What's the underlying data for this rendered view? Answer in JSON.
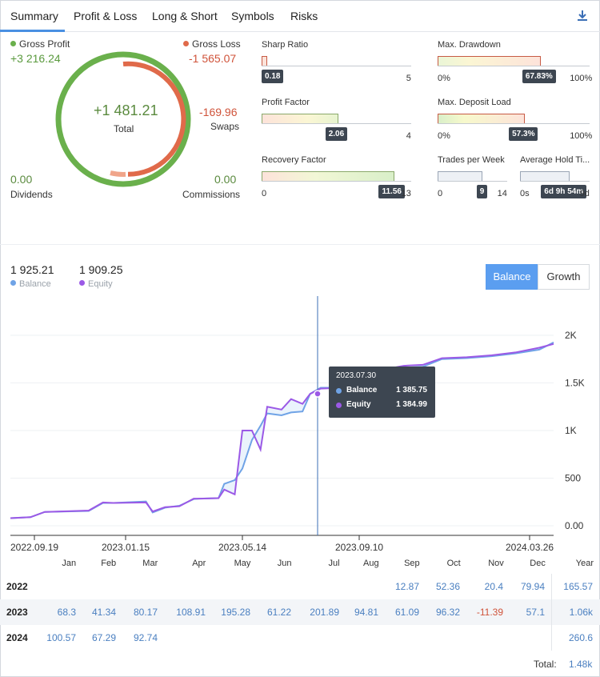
{
  "tabs": [
    {
      "label": "Summary"
    },
    {
      "label": "Profit & Loss"
    },
    {
      "label": "Long & Short"
    },
    {
      "label": "Symbols"
    },
    {
      "label": "Risks"
    }
  ],
  "summary": {
    "gross_profit_label": "Gross Profit",
    "gross_profit_value": "+3 216.24",
    "gross_loss_label": "Gross Loss",
    "gross_loss_value": "-1 565.07",
    "total_value": "+1 481.21",
    "total_label": "Total",
    "swaps_value": "-169.96",
    "swaps_label": "Swaps",
    "dividends_value": "0.00",
    "dividends_label": "Dividends",
    "commissions_value": "0.00",
    "commissions_label": "Commissions",
    "colors": {
      "profit": "#6ab04c",
      "loss": "#e06a4a",
      "swap": "#f0a58a"
    }
  },
  "metrics": {
    "sharp_ratio": {
      "title": "Sharp Ratio",
      "value": "0.18",
      "min": "",
      "max": "5",
      "fraction": 0.036
    },
    "profit_factor": {
      "title": "Profit Factor",
      "value": "2.06",
      "min": "",
      "max": "4",
      "fraction": 0.515
    },
    "recovery_factor": {
      "title": "Recovery Factor",
      "value": "11.56",
      "min": "0",
      "max": "13",
      "fraction": 0.889
    },
    "max_drawdown": {
      "title": "Max. Drawdown",
      "value": "67.83%",
      "min": "0%",
      "max": "100%",
      "fraction": 0.678
    },
    "max_deposit_load": {
      "title": "Max. Deposit Load",
      "value": "57.3%",
      "min": "0%",
      "max": "100%",
      "fraction": 0.573
    },
    "trades_per_week": {
      "title": "Trades per Week",
      "value": "9",
      "min": "0",
      "max": "14",
      "fraction": 0.643
    },
    "avg_hold_time": {
      "title": "Average Hold Ti...",
      "value": "6d 9h 54m",
      "min": "0s",
      "max": "9d",
      "fraction": 0.711
    }
  },
  "chart_legend": {
    "balance_value": "1 925.21",
    "balance_label": "Balance",
    "equity_value": "1 909.25",
    "equity_label": "Equity"
  },
  "toggle": {
    "balance": "Balance",
    "growth": "Growth"
  },
  "tooltip": {
    "date": "2023.07.30",
    "balance_label": "Balance",
    "balance_value": "1 385.75",
    "equity_label": "Equity",
    "equity_value": "1 384.99"
  },
  "chart_data": {
    "type": "line",
    "x_tick_labels": [
      "2022.09.19",
      "2023.01.15",
      "2023.05.14",
      "2023.09.10",
      "2024.03.26"
    ],
    "y_tick_labels": [
      "0.00",
      "500",
      "1K",
      "1.5K",
      "2K"
    ],
    "ylim": [
      0,
      2000
    ],
    "series": [
      {
        "name": "Balance",
        "color": "#6fa3e6",
        "x": [
          "2022.09.19",
          "2022.10.10",
          "2022.10.25",
          "2022.12.10",
          "2022.12.25",
          "2023.01.05",
          "2023.02.08",
          "2023.02.15",
          "2023.02.28",
          "2023.03.15",
          "2023.03.30",
          "2023.04.05",
          "2023.04.25",
          "2023.05.01",
          "2023.05.12",
          "2023.05.20",
          "2023.05.30",
          "2023.06.08",
          "2023.06.15",
          "2023.06.30",
          "2023.07.10",
          "2023.07.22",
          "2023.07.30",
          "2023.08.10",
          "2023.09.05",
          "2023.09.20",
          "2023.10.05",
          "2023.10.20",
          "2023.11.05",
          "2023.11.25",
          "2023.12.15",
          "2024.01.10",
          "2024.02.05",
          "2024.03.01",
          "2024.03.26",
          "2024.04.10"
        ],
        "values": [
          80,
          90,
          145,
          155,
          240,
          240,
          255,
          140,
          190,
          210,
          280,
          285,
          290,
          440,
          480,
          600,
          900,
          1050,
          1180,
          1160,
          1190,
          1200,
          1386,
          1450,
          1450,
          1560,
          1620,
          1650,
          1660,
          1670,
          1750,
          1760,
          1780,
          1810,
          1850,
          1925
        ]
      },
      {
        "name": "Equity",
        "color": "#9b59e6",
        "x": [
          "2022.09.19",
          "2022.10.10",
          "2022.10.25",
          "2022.12.10",
          "2022.12.25",
          "2023.01.05",
          "2023.02.08",
          "2023.02.15",
          "2023.02.28",
          "2023.03.15",
          "2023.03.30",
          "2023.04.05",
          "2023.04.25",
          "2023.05.01",
          "2023.05.12",
          "2023.05.20",
          "2023.05.30",
          "2023.06.08",
          "2023.06.15",
          "2023.06.30",
          "2023.07.10",
          "2023.07.22",
          "2023.07.30",
          "2023.08.10",
          "2023.09.05",
          "2023.09.20",
          "2023.10.05",
          "2023.10.20",
          "2023.11.05",
          "2023.11.25",
          "2023.12.15",
          "2024.01.10",
          "2024.02.05",
          "2024.03.01",
          "2024.03.26",
          "2024.04.10"
        ],
        "values": [
          80,
          90,
          145,
          160,
          245,
          240,
          245,
          150,
          195,
          205,
          285,
          285,
          290,
          380,
          330,
          1000,
          1000,
          800,
          1250,
          1220,
          1330,
          1280,
          1385,
          1440,
          1450,
          1600,
          1660,
          1650,
          1680,
          1690,
          1760,
          1770,
          1790,
          1820,
          1870,
          1909
        ]
      }
    ]
  },
  "monthly": {
    "headers": [
      "Jan",
      "Feb",
      "Mar",
      "Apr",
      "May",
      "Jun",
      "Jul",
      "Aug",
      "Sep",
      "Oct",
      "Nov",
      "Dec",
      "Year"
    ],
    "rows": [
      {
        "year": "2022",
        "cells": [
          "",
          "",
          "",
          "",
          "",
          "",
          "",
          "",
          "12.87",
          "52.36",
          "20.4",
          "79.94"
        ],
        "total": "165.57"
      },
      {
        "year": "2023",
        "cells": [
          "68.3",
          "41.34",
          "80.17",
          "108.91",
          "195.28",
          "61.22",
          "201.89",
          "94.81",
          "61.09",
          "96.32",
          "-11.39",
          "57.1"
        ],
        "total": "1.06k"
      },
      {
        "year": "2024",
        "cells": [
          "100.57",
          "67.29",
          "92.74",
          "",
          "",
          "",
          "",
          "",
          "",
          "",
          "",
          ""
        ],
        "total": "260.6"
      }
    ],
    "total_label": "Total:",
    "total_value": "1.48k"
  }
}
